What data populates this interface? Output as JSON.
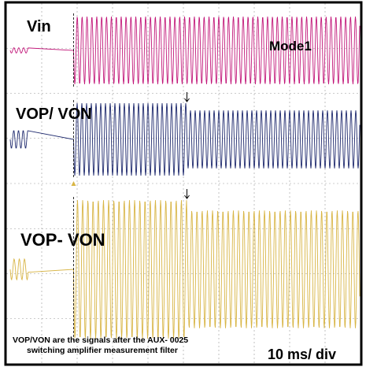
{
  "chart_data": {
    "type": "line",
    "title": "",
    "annotation": {
      "mode": "Mode1",
      "timebase": "10 ms/ div",
      "note_line1": "VOP/VON are the signals after the AUX- 0025",
      "note_line2": "switching amplifier measurement filter"
    },
    "grid": true,
    "grid_divisions": {
      "x": 10,
      "y": 8
    },
    "series": [
      {
        "name": "Vin",
        "color": "#c2187a",
        "pre_level": 0.08,
        "post_level": 1.0,
        "step_at": 0.19
      },
      {
        "name": "VOP/ VON",
        "color": "#1f2a6e",
        "pre_level": 0.25,
        "post_level": 1.0,
        "step_at": 0.19,
        "drop_at": 0.51,
        "drop_level": 0.8
      },
      {
        "name": "VOP- VON",
        "color": "#d8b545",
        "pre_level": 0.15,
        "post_level": 1.0,
        "step_at": 0.19,
        "drop_at": 0.51,
        "drop_level": 0.85
      }
    ]
  }
}
